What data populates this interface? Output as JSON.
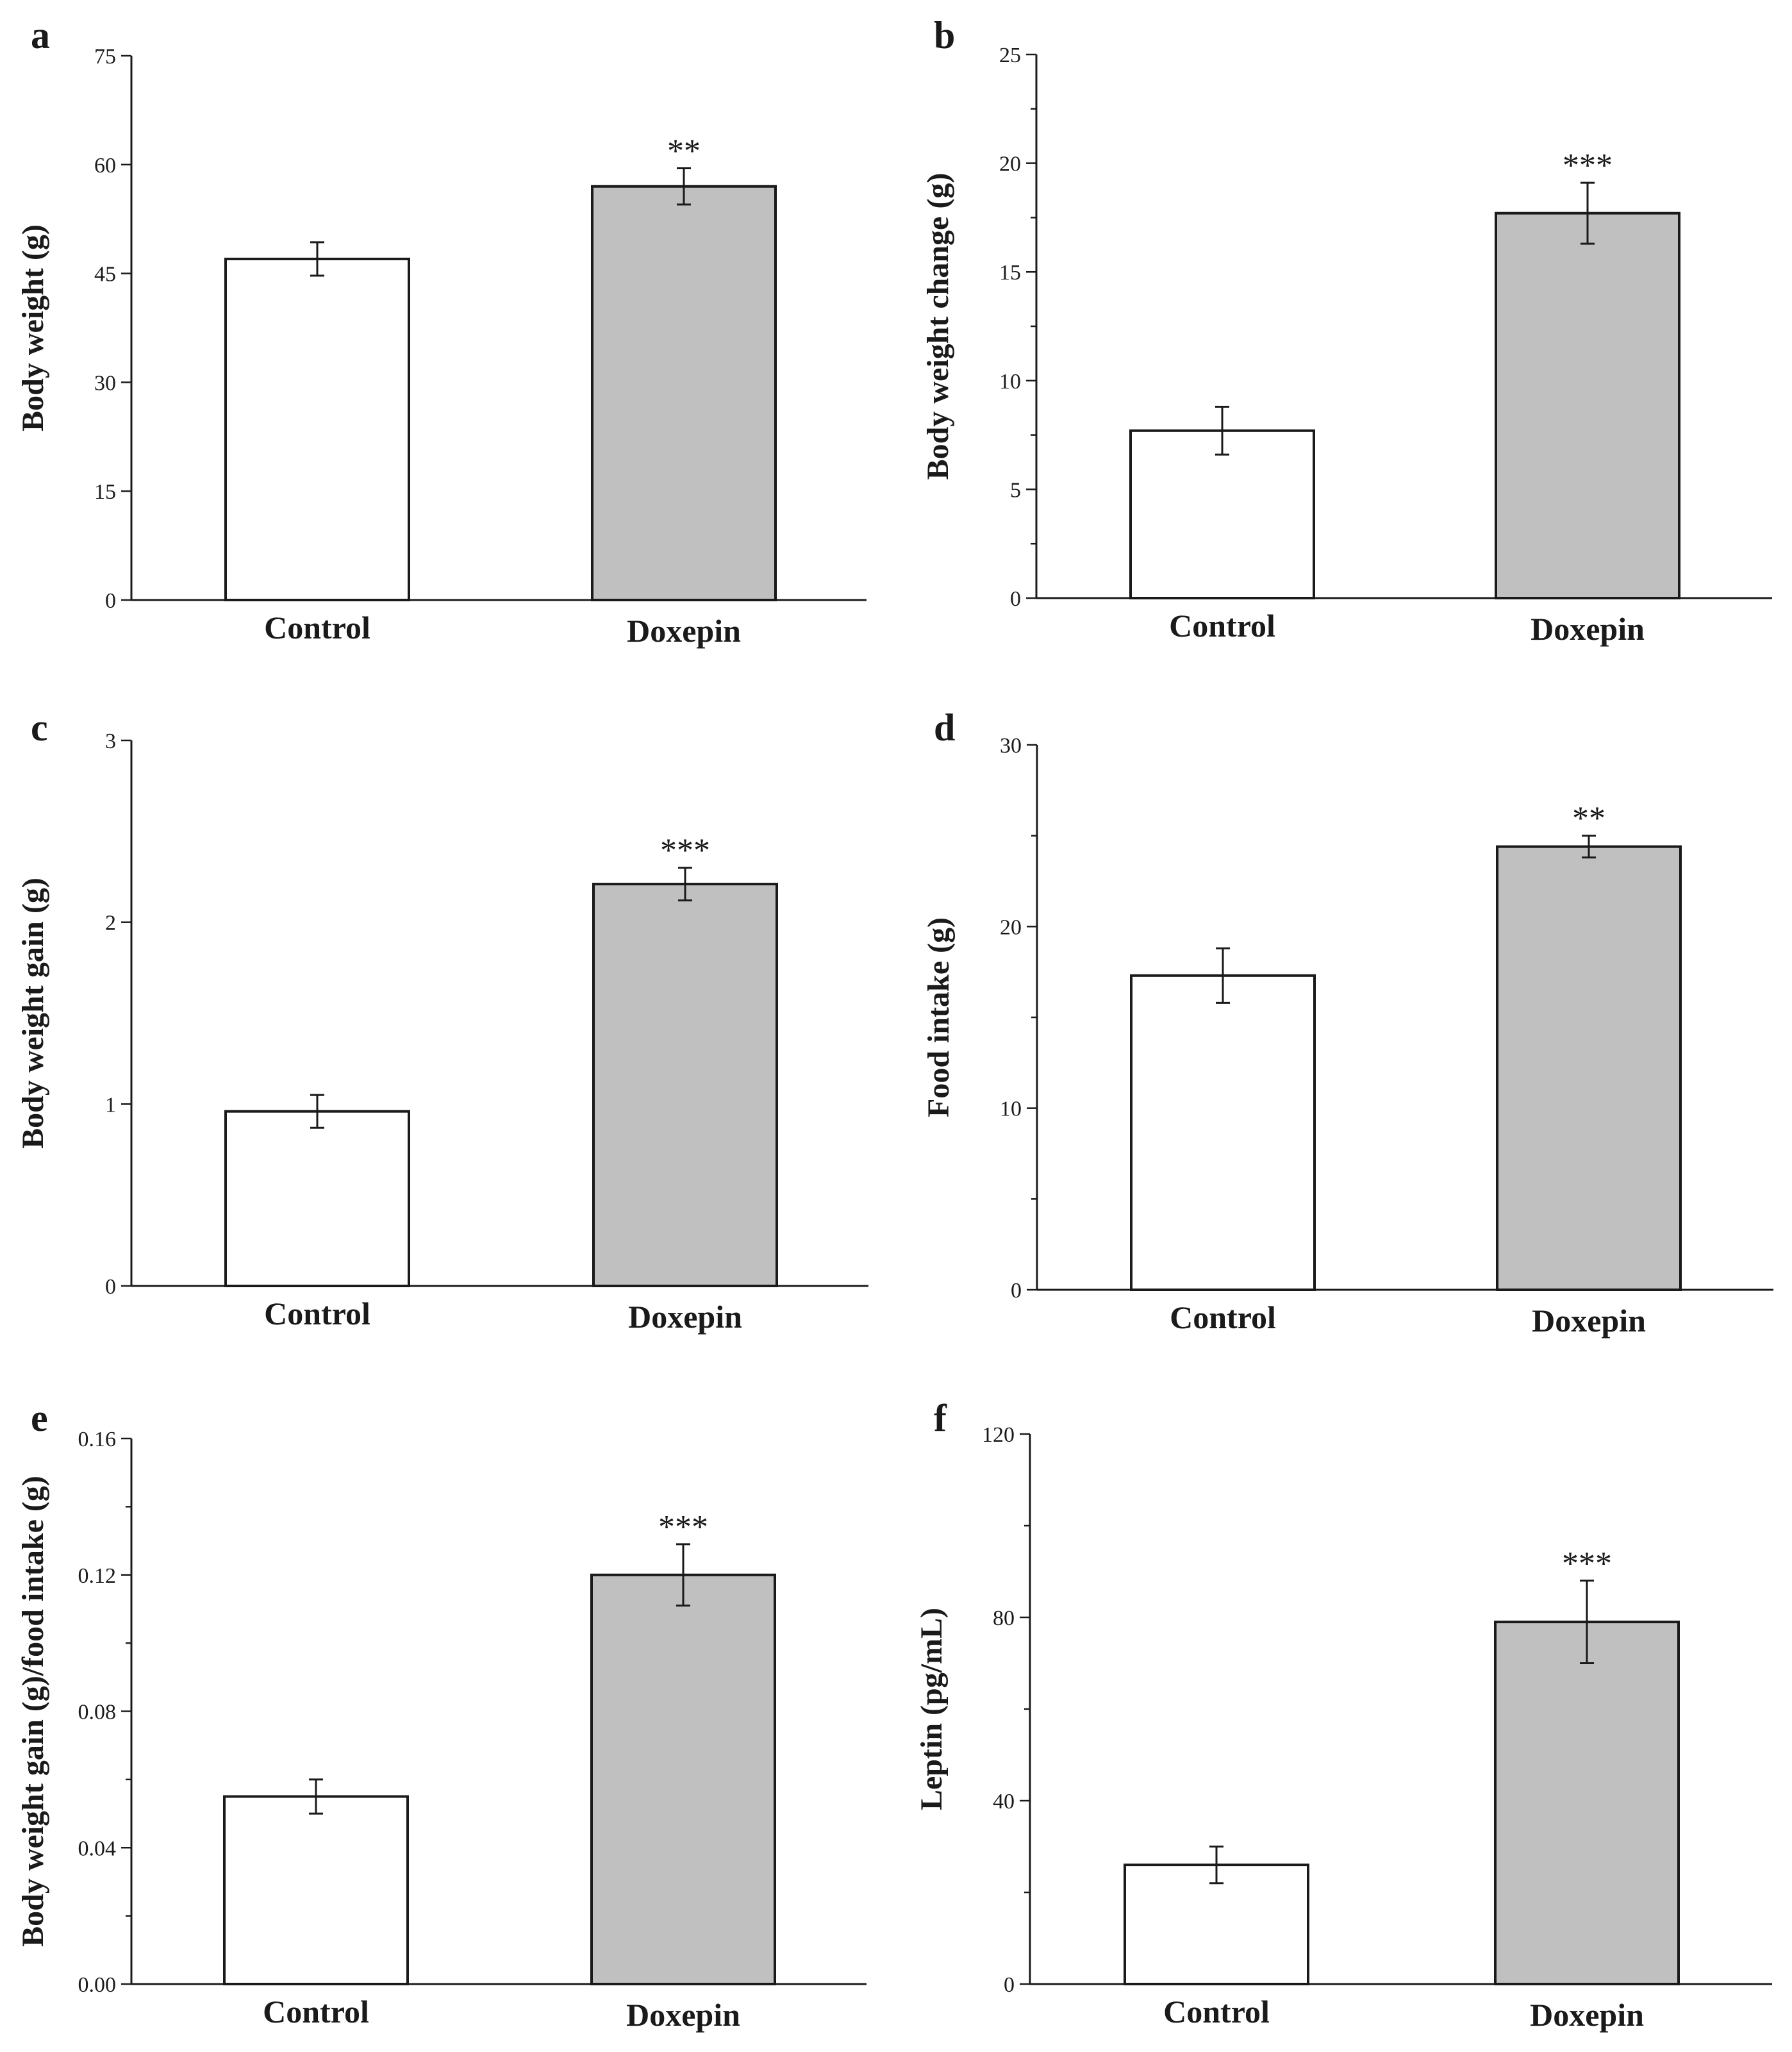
{
  "chart_data": [
    {
      "panel": "a",
      "type": "bar",
      "categories": [
        "Control",
        "Doxepin"
      ],
      "values": [
        47.0,
        57.0
      ],
      "errors": [
        2.3,
        2.5
      ],
      "significance": [
        "",
        "**"
      ],
      "ylabel": "Body weight (g)",
      "ylim": [
        0,
        75
      ],
      "yticks": [
        0,
        15,
        30,
        45,
        60,
        75
      ],
      "ytick_labels": [
        "0",
        "15",
        "30",
        "45",
        "60",
        "75"
      ],
      "minor_ticks": false,
      "colors": [
        "#ffffff",
        "#c0c0c0"
      ]
    },
    {
      "panel": "b",
      "type": "bar",
      "categories": [
        "Control",
        "Doxepin"
      ],
      "values": [
        7.7,
        17.7
      ],
      "errors": [
        1.1,
        1.4
      ],
      "significance": [
        "",
        "***"
      ],
      "ylabel": "Body weight change (g)",
      "ylim": [
        0,
        25
      ],
      "yticks": [
        0,
        5,
        10,
        15,
        20,
        25
      ],
      "ytick_labels": [
        "0",
        "5",
        "10",
        "15",
        "20",
        "25"
      ],
      "minor_ticks": true,
      "colors": [
        "#ffffff",
        "#c0c0c0"
      ]
    },
    {
      "panel": "c",
      "type": "bar",
      "categories": [
        "Control",
        "Doxepin"
      ],
      "values": [
        0.96,
        2.21
      ],
      "errors": [
        0.09,
        0.09
      ],
      "significance": [
        "",
        "***"
      ],
      "ylabel": "Body weight gain (g)",
      "ylim": [
        0,
        3
      ],
      "yticks": [
        0,
        1,
        2,
        3
      ],
      "ytick_labels": [
        "0",
        "1",
        "2",
        "3"
      ],
      "minor_ticks": false,
      "colors": [
        "#ffffff",
        "#c0c0c0"
      ]
    },
    {
      "panel": "d",
      "type": "bar",
      "categories": [
        "Control",
        "Doxepin"
      ],
      "values": [
        17.3,
        24.4
      ],
      "errors": [
        1.5,
        0.6
      ],
      "significance": [
        "",
        "**"
      ],
      "ylabel": "Food intake (g)",
      "ylim": [
        0,
        30
      ],
      "yticks": [
        0,
        10,
        20,
        30
      ],
      "ytick_labels": [
        "0",
        "10",
        "20",
        "30"
      ],
      "minor_ticks": true,
      "colors": [
        "#ffffff",
        "#c0c0c0"
      ]
    },
    {
      "panel": "e",
      "type": "bar",
      "categories": [
        "Control",
        "Doxepin"
      ],
      "values": [
        0.055,
        0.12
      ],
      "errors": [
        0.005,
        0.009
      ],
      "significance": [
        "",
        "***"
      ],
      "ylabel": "Body weight gain (g)/food intake (g)",
      "ylim": [
        0,
        0.16
      ],
      "yticks": [
        0,
        0.04,
        0.08,
        0.12,
        0.16
      ],
      "ytick_labels": [
        "0.00",
        "0.04",
        "0.08",
        "0.12",
        "0.16"
      ],
      "minor_ticks": true,
      "colors": [
        "#ffffff",
        "#c0c0c0"
      ]
    },
    {
      "panel": "f",
      "type": "bar",
      "categories": [
        "Control",
        "Doxepin"
      ],
      "values": [
        26.0,
        79.0
      ],
      "errors": [
        4.0,
        9.0
      ],
      "significance": [
        "",
        "***"
      ],
      "ylabel": "Leptin (pg/mL)",
      "ylim": [
        0,
        120
      ],
      "yticks": [
        0,
        40,
        80,
        120
      ],
      "ytick_labels": [
        "0",
        "40",
        "80",
        "120"
      ],
      "minor_ticks": true,
      "colors": [
        "#ffffff",
        "#c0c0c0"
      ]
    }
  ]
}
